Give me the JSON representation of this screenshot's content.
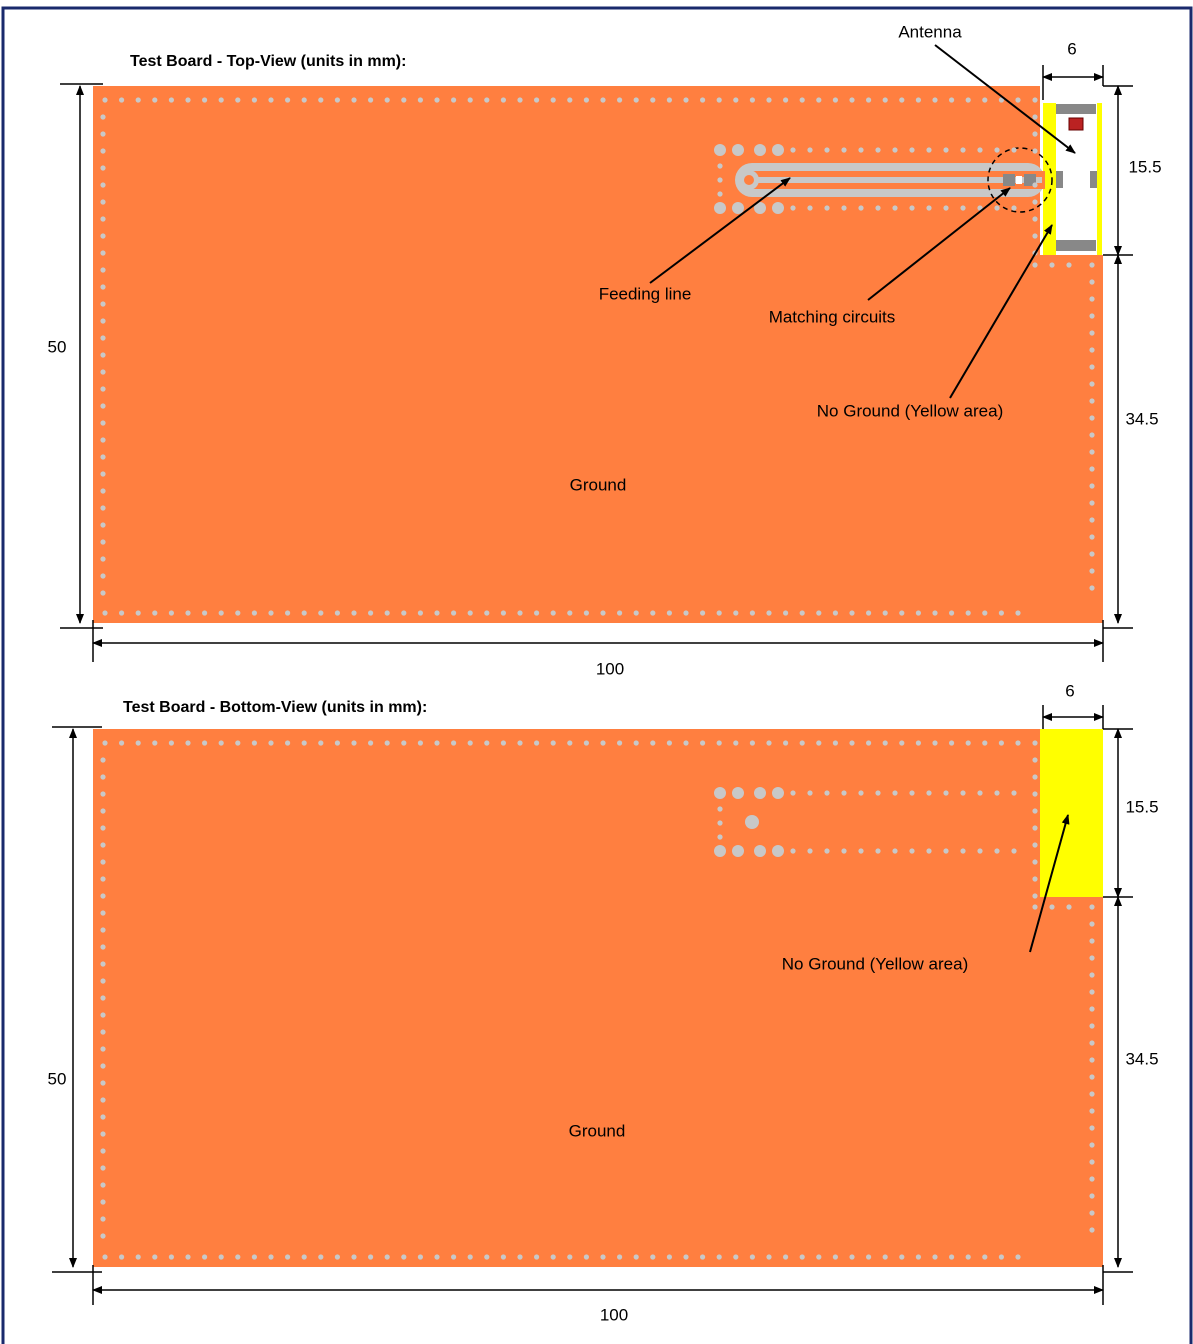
{
  "top_view": {
    "title": "Test Board - Top-View (units in mm):",
    "antenna_label": "Antenna",
    "width_antenna": "6",
    "height_antenna": "15.5",
    "feeding_line_label": "Feeding line",
    "matching_label": "Matching circuits",
    "no_ground_label": "No Ground (Yellow area)",
    "height_board": "50",
    "height_rest": "34.5",
    "ground_label": "Ground",
    "width_board": "100"
  },
  "bottom_view": {
    "title": "Test Board - Bottom-View (units in mm):",
    "width_antenna": "6",
    "height_antenna": "15.5",
    "no_ground_label": "No Ground (Yellow area)",
    "height_board": "50",
    "height_rest": "34.5",
    "ground_label": "Ground",
    "width_board": "100"
  }
}
